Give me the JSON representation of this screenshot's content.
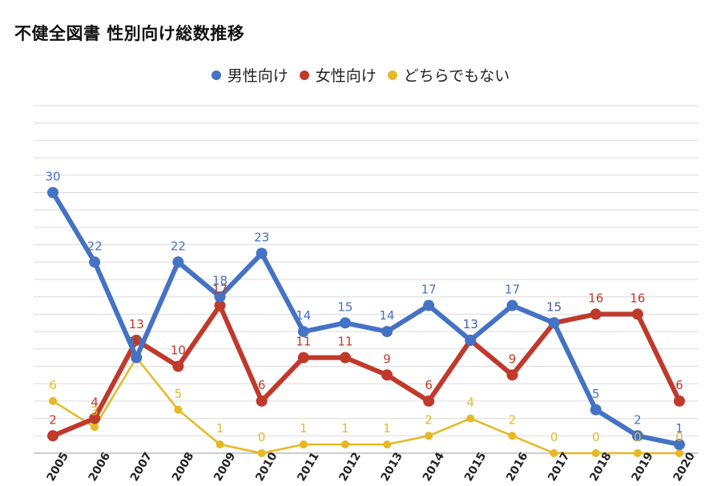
{
  "title": "不健全図書 性別向け総数推移",
  "chart_data": {
    "type": "line",
    "title": "不健全図書 性別向け総数推移",
    "xlabel": "",
    "ylabel": "",
    "ylim": [
      0,
      40
    ],
    "grid": true,
    "legend_position": "top-center",
    "x": [
      "2005",
      "2006",
      "2007",
      "2008",
      "2009",
      "2010",
      "2011",
      "2012",
      "2013",
      "2014",
      "2015",
      "2016",
      "2017",
      "2018",
      "2019",
      "2020"
    ],
    "series": [
      {
        "name": "男性向け",
        "color": "#4472c4",
        "values": [
          30,
          22,
          11,
          22,
          18,
          23,
          14,
          15,
          14,
          17,
          13,
          17,
          15,
          5,
          2,
          1
        ]
      },
      {
        "name": "女性向け",
        "color": "#c0392b",
        "values": [
          2,
          4,
          13,
          10,
          17,
          6,
          11,
          11,
          9,
          6,
          13,
          9,
          15,
          16,
          16,
          6
        ]
      },
      {
        "name": "どちらでもない",
        "color": "#e6b824",
        "values": [
          6,
          3,
          11,
          5,
          1,
          0,
          1,
          1,
          1,
          2,
          4,
          2,
          0,
          0,
          0,
          0
        ]
      }
    ]
  }
}
